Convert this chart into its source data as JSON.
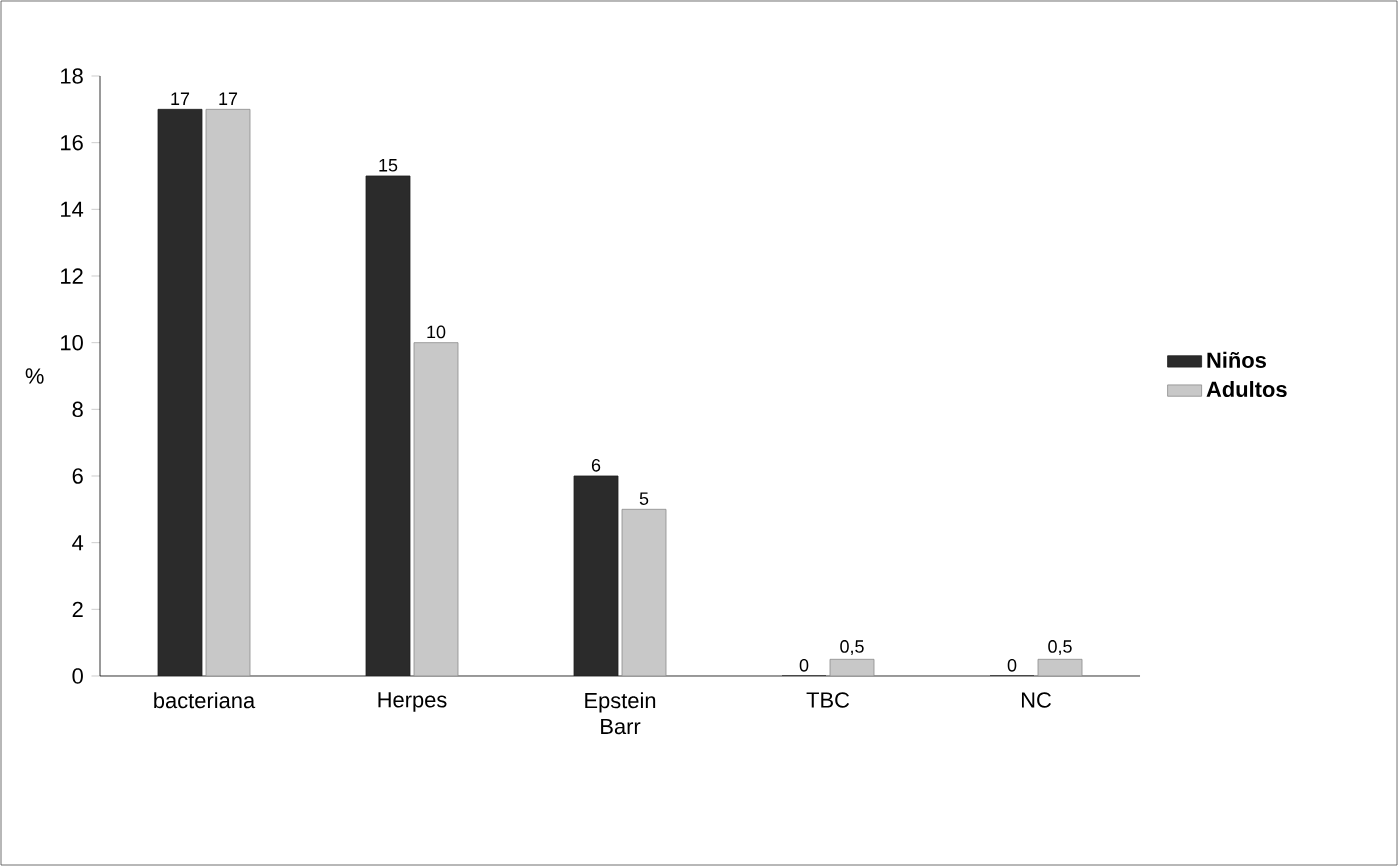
{
  "chart_data": {
    "type": "bar",
    "ylabel": "%",
    "categories": [
      "bacteriana",
      "Herpes",
      "Epstein Barr",
      "TBC",
      "NC"
    ],
    "series": [
      {
        "name": "Niños",
        "color": "#2b2b2b",
        "values": [
          17,
          15,
          6,
          0,
          0
        ],
        "value_labels": [
          "17",
          "15",
          "6",
          "0",
          "0"
        ]
      },
      {
        "name": "Adultos",
        "color": "#c8c8c8",
        "values": [
          17,
          10,
          5,
          0.5,
          0.5
        ],
        "value_labels": [
          "17",
          "10",
          "5",
          "0,5",
          "0,5"
        ]
      }
    ],
    "ylim": [
      0,
      18
    ],
    "yticks": [
      0,
      2,
      4,
      6,
      8,
      10,
      12,
      14,
      16,
      18
    ],
    "legend": "right"
  }
}
